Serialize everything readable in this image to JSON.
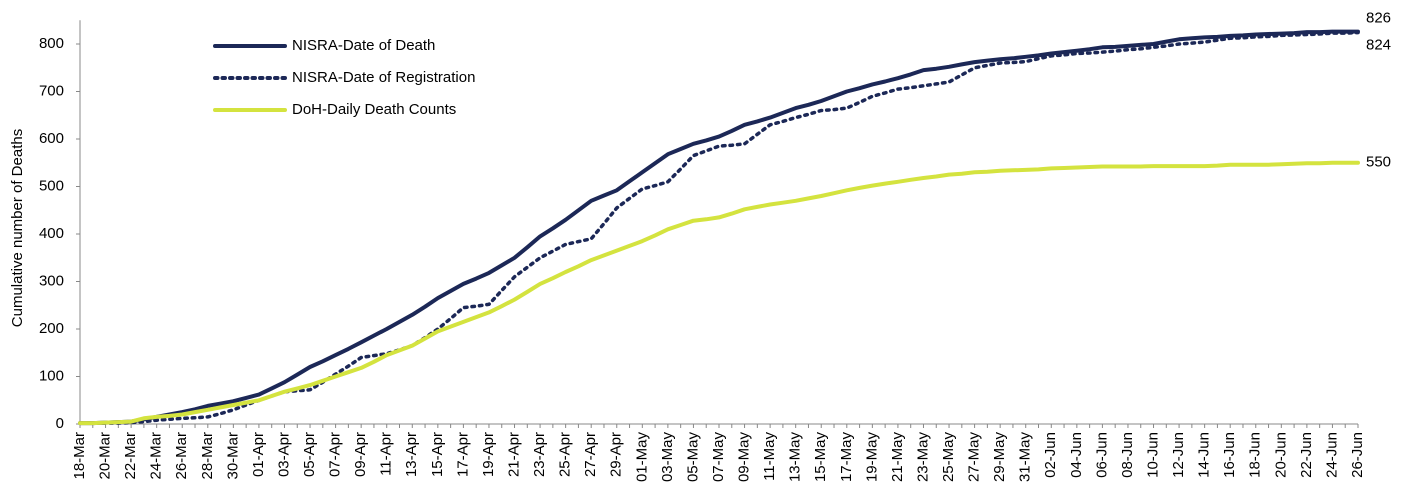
{
  "chart_data": {
    "type": "line",
    "y_label": "Cumulative number of Deaths",
    "categories": [
      "18-Mar",
      null,
      "20-Mar",
      null,
      "22-Mar",
      null,
      "24-Mar",
      null,
      "26-Mar",
      null,
      "28-Mar",
      null,
      "30-Mar",
      null,
      "01-Apr",
      null,
      "03-Apr",
      null,
      "05-Apr",
      null,
      "07-Apr",
      null,
      "09-Apr",
      null,
      "11-Apr",
      null,
      "13-Apr",
      null,
      "15-Apr",
      null,
      "17-Apr",
      null,
      "19-Apr",
      null,
      "21-Apr",
      null,
      "23-Apr",
      null,
      "25-Apr",
      null,
      "27-Apr",
      null,
      "29-Apr",
      null,
      "01-May",
      null,
      "03-May",
      null,
      "05-May",
      null,
      "07-May",
      null,
      "09-May",
      null,
      "11-May",
      null,
      "13-May",
      null,
      "15-May",
      null,
      "17-May",
      null,
      "19-May",
      null,
      "21-May",
      null,
      "23-May",
      null,
      "25-May",
      null,
      "27-May",
      null,
      "29-May",
      null,
      "31-May",
      null,
      "02-Jun",
      null,
      "04-Jun",
      null,
      "06-Jun",
      null,
      "08-Jun",
      null,
      "10-Jun",
      null,
      "12-Jun",
      null,
      "14-Jun",
      null,
      "16-Jun",
      null,
      "18-Jun",
      null,
      "20-Jun",
      null,
      "22-Jun",
      null,
      "24-Jun",
      null,
      "26-Jun"
    ],
    "series": [
      {
        "name": "NISRA-Date of Death",
        "color": "#1c2857",
        "style": "solid",
        "values": [
          2,
          2,
          3,
          4,
          5,
          10,
          15,
          20,
          25,
          31,
          38,
          43,
          48,
          55,
          62,
          75,
          88,
          104,
          120,
          132,
          145,
          158,
          172,
          186,
          200,
          215,
          230,
          247,
          265,
          280,
          295,
          306,
          318,
          334,
          350,
          372,
          395,
          412,
          430,
          450,
          470,
          481,
          492,
          511,
          530,
          549,
          568,
          579,
          590,
          597,
          605,
          617,
          630,
          637,
          645,
          655,
          665,
          672,
          680,
          690,
          700,
          707,
          715,
          721,
          728,
          736,
          745,
          748,
          752,
          757,
          762,
          765,
          768,
          770,
          773,
          776,
          780,
          783,
          786,
          789,
          793,
          794,
          796,
          798,
          800,
          805,
          810,
          812,
          814,
          815,
          817,
          818,
          820,
          821,
          822,
          823,
          825,
          825,
          826,
          826,
          826
        ]
      },
      {
        "name": "NISRA-Date of Registration",
        "color": "#1c2857",
        "style": "dotted",
        "values": [
          2,
          2,
          2,
          2,
          3,
          5,
          8,
          10,
          12,
          13,
          15,
          22,
          30,
          40,
          50,
          59,
          68,
          70,
          72,
          88,
          105,
          122,
          140,
          144,
          148,
          156,
          165,
          182,
          200,
          222,
          245,
          248,
          252,
          281,
          310,
          330,
          350,
          364,
          378,
          384,
          390,
          422,
          455,
          475,
          495,
          502,
          510,
          537,
          565,
          575,
          585,
          587,
          590,
          610,
          630,
          637,
          645,
          652,
          660,
          662,
          665,
          677,
          690,
          697,
          705,
          708,
          712,
          716,
          720,
          735,
          750,
          755,
          760,
          761,
          763,
          769,
          775,
          777,
          780,
          781,
          783,
          785,
          788,
          790,
          793,
          796,
          800,
          802,
          804,
          808,
          812,
          813,
          815,
          816,
          818,
          819,
          820,
          821,
          823,
          823,
          824
        ]
      },
      {
        "name": "DoH-Daily Death Counts",
        "color": "#d4e33f",
        "style": "solid",
        "values": [
          2,
          2,
          3,
          4,
          5,
          12,
          15,
          17,
          20,
          25,
          30,
          35,
          40,
          45,
          50,
          59,
          68,
          75,
          82,
          91,
          100,
          109,
          118,
          131,
          145,
          155,
          165,
          180,
          195,
          205,
          215,
          225,
          235,
          248,
          262,
          278,
          295,
          307,
          320,
          332,
          345,
          355,
          365,
          375,
          385,
          397,
          410,
          419,
          428,
          431,
          435,
          443,
          452,
          457,
          462,
          466,
          470,
          475,
          480,
          486,
          492,
          497,
          502,
          506,
          510,
          514,
          518,
          521,
          525,
          527,
          530,
          531,
          533,
          534,
          535,
          536,
          538,
          539,
          540,
          541,
          542,
          542,
          542,
          542,
          543,
          543,
          543,
          543,
          543,
          544,
          546,
          546,
          546,
          546,
          547,
          548,
          549,
          549,
          550,
          550,
          550
        ]
      }
    ],
    "ylim": [
      0,
      850
    ],
    "yticks": [
      0,
      100,
      200,
      300,
      400,
      500,
      600,
      700,
      800
    ],
    "end_labels": true,
    "legend": "top-left"
  }
}
